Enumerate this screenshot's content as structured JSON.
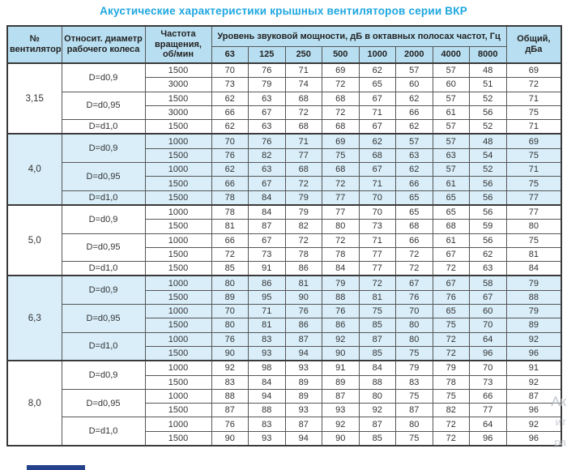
{
  "title": "Акустические характеристики крышных вентиляторов серии ВКР",
  "colors": {
    "title_text": "#1ea7e1",
    "header_bg": "#b8dff1",
    "shaded_group_bg": "#d9eef9",
    "grid_border": "#565656",
    "bottom_bar": "#24418c"
  },
  "table": {
    "headers": {
      "fan": "№ вентилятора",
      "diameter": "Относит. диаметр рабочего колеса",
      "speed": "Частота вращения, об/мин",
      "spl_group": "Уровень звуковой мощности, дБ в октавных полосах частот, Гц",
      "freqs": [
        "63",
        "125",
        "250",
        "500",
        "1000",
        "2000",
        "4000",
        "8000"
      ],
      "total": "Общий, дБа"
    },
    "groups": [
      {
        "fan": "3,15",
        "shaded": false,
        "subgroups": [
          {
            "diameter": "D=d0,9",
            "rows": [
              {
                "speed": "1500",
                "levels": [
                  70,
                  76,
                  71,
                  69,
                  62,
                  57,
                  57,
                  48
                ],
                "total": 69
              },
              {
                "speed": "3000",
                "levels": [
                  73,
                  79,
                  74,
                  72,
                  65,
                  60,
                  60,
                  51
                ],
                "total": 72
              }
            ]
          },
          {
            "diameter": "D=d0,95",
            "rows": [
              {
                "speed": "1500",
                "levels": [
                  62,
                  63,
                  68,
                  68,
                  67,
                  62,
                  57,
                  52
                ],
                "total": 71
              },
              {
                "speed": "3000",
                "levels": [
                  66,
                  67,
                  72,
                  72,
                  71,
                  66,
                  61,
                  56
                ],
                "total": 75
              }
            ]
          },
          {
            "diameter": "D=d1,0",
            "rows": [
              {
                "speed": "1500",
                "levels": [
                  62,
                  63,
                  68,
                  68,
                  67,
                  62,
                  57,
                  52
                ],
                "total": 71
              }
            ]
          }
        ]
      },
      {
        "fan": "4,0",
        "shaded": true,
        "subgroups": [
          {
            "diameter": "D=d0,9",
            "rows": [
              {
                "speed": "1000",
                "levels": [
                  70,
                  76,
                  71,
                  69,
                  62,
                  57,
                  57,
                  48
                ],
                "total": 69
              },
              {
                "speed": "1500",
                "levels": [
                  76,
                  82,
                  77,
                  75,
                  68,
                  63,
                  63,
                  54
                ],
                "total": 75
              }
            ]
          },
          {
            "diameter": "D=d0,95",
            "rows": [
              {
                "speed": "1000",
                "levels": [
                  62,
                  63,
                  68,
                  68,
                  67,
                  62,
                  57,
                  52
                ],
                "total": 71
              },
              {
                "speed": "1500",
                "levels": [
                  66,
                  67,
                  72,
                  72,
                  71,
                  66,
                  61,
                  56
                ],
                "total": 75
              }
            ]
          },
          {
            "diameter": "D=d1,0",
            "rows": [
              {
                "speed": "1500",
                "levels": [
                  78,
                  84,
                  79,
                  77,
                  70,
                  65,
                  65,
                  56
                ],
                "total": 77
              }
            ]
          }
        ]
      },
      {
        "fan": "5,0",
        "shaded": false,
        "subgroups": [
          {
            "diameter": "D=d0,9",
            "rows": [
              {
                "speed": "1000",
                "levels": [
                  78,
                  84,
                  79,
                  77,
                  70,
                  65,
                  65,
                  56
                ],
                "total": 77
              },
              {
                "speed": "1500",
                "levels": [
                  81,
                  87,
                  82,
                  80,
                  73,
                  68,
                  68,
                  59
                ],
                "total": 80
              }
            ]
          },
          {
            "diameter": "D=d0,95",
            "rows": [
              {
                "speed": "1000",
                "levels": [
                  66,
                  67,
                  72,
                  72,
                  71,
                  66,
                  61,
                  56
                ],
                "total": 75
              },
              {
                "speed": "1500",
                "levels": [
                  72,
                  73,
                  78,
                  78,
                  77,
                  72,
                  67,
                  62
                ],
                "total": 81
              }
            ]
          },
          {
            "diameter": "D=d1,0",
            "rows": [
              {
                "speed": "1500",
                "levels": [
                  85,
                  91,
                  86,
                  84,
                  77,
                  72,
                  72,
                  63
                ],
                "total": 84
              }
            ]
          }
        ]
      },
      {
        "fan": "6,3",
        "shaded": true,
        "subgroups": [
          {
            "diameter": "D=d0,9",
            "rows": [
              {
                "speed": "1000",
                "levels": [
                  80,
                  86,
                  81,
                  79,
                  72,
                  67,
                  67,
                  58
                ],
                "total": 79
              },
              {
                "speed": "1500",
                "levels": [
                  89,
                  95,
                  90,
                  88,
                  81,
                  76,
                  76,
                  67
                ],
                "total": 88
              }
            ]
          },
          {
            "diameter": "D=d0,95",
            "rows": [
              {
                "speed": "1000",
                "levels": [
                  70,
                  71,
                  76,
                  76,
                  75,
                  70,
                  65,
                  60
                ],
                "total": 79
              },
              {
                "speed": "1500",
                "levels": [
                  80,
                  81,
                  86,
                  86,
                  85,
                  80,
                  75,
                  70
                ],
                "total": 89
              }
            ]
          },
          {
            "diameter": "D=d1,0",
            "rows": [
              {
                "speed": "1000",
                "levels": [
                  76,
                  83,
                  87,
                  92,
                  87,
                  80,
                  72,
                  64
                ],
                "total": 92
              },
              {
                "speed": "1500",
                "levels": [
                  90,
                  93,
                  94,
                  90,
                  85,
                  75,
                  72,
                  96
                ],
                "total": 96
              }
            ]
          }
        ]
      },
      {
        "fan": "8,0",
        "shaded": false,
        "subgroups": [
          {
            "diameter": "D=d0,9",
            "rows": [
              {
                "speed": "1000",
                "levels": [
                  92,
                  98,
                  93,
                  91,
                  84,
                  79,
                  79,
                  70
                ],
                "total": 91
              },
              {
                "speed": "1500",
                "levels": [
                  83,
                  84,
                  89,
                  89,
                  88,
                  83,
                  78,
                  73
                ],
                "total": 92
              }
            ]
          },
          {
            "diameter": "D=d0,95",
            "rows": [
              {
                "speed": "1000",
                "levels": [
                  88,
                  94,
                  89,
                  87,
                  80,
                  75,
                  75,
                  66
                ],
                "total": 87
              },
              {
                "speed": "1500",
                "levels": [
                  87,
                  88,
                  93,
                  93,
                  92,
                  87,
                  82,
                  77
                ],
                "total": 96
              }
            ]
          },
          {
            "diameter": "D=d1,0",
            "rows": [
              {
                "speed": "1000",
                "levels": [
                  76,
                  83,
                  87,
                  92,
                  87,
                  80,
                  72,
                  64
                ],
                "total": 92
              },
              {
                "speed": "1500",
                "levels": [
                  90,
                  93,
                  94,
                  90,
                  85,
                  75,
                  72,
                  96
                ],
                "total": 96
              }
            ]
          }
        ]
      }
    ]
  },
  "watermark": {
    "fragments": [
      "Ак",
      "ит",
      "ра"
    ]
  }
}
